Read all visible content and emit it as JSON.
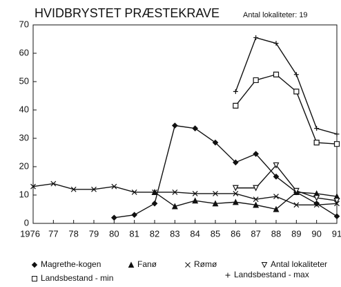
{
  "chart_data": {
    "type": "line",
    "title": "HVIDBRYSTET PRÆSTEKRAVE",
    "annotation": "Antal lokaliteter: 19",
    "x": [
      1976,
      1977,
      1978,
      1979,
      1980,
      1981,
      1982,
      1983,
      1984,
      1985,
      1986,
      1987,
      1988,
      1989,
      1990,
      1991
    ],
    "xlim": [
      1976,
      1991
    ],
    "xticks": [
      1976,
      {
        "value": 1977,
        "label": "77"
      },
      {
        "value": 1978,
        "label": "78"
      },
      {
        "value": 1979,
        "label": "79"
      },
      {
        "value": 1980,
        "label": "80"
      },
      {
        "value": 1981,
        "label": "81"
      },
      {
        "value": 1982,
        "label": "82"
      },
      {
        "value": 1983,
        "label": "83"
      },
      {
        "value": 1984,
        "label": "84"
      },
      {
        "value": 1985,
        "label": "85"
      },
      {
        "value": 1986,
        "label": "86"
      },
      {
        "value": 1987,
        "label": "87"
      },
      {
        "value": 1988,
        "label": "88"
      },
      {
        "value": 1989,
        "label": "89"
      },
      {
        "value": 1990,
        "label": "90"
      },
      {
        "value": 1991,
        "label": "91"
      }
    ],
    "ylim": [
      0,
      70
    ],
    "yticks": [
      0,
      10,
      20,
      30,
      40,
      50,
      60,
      70
    ],
    "grid": false,
    "series": [
      {
        "name": "Magrethe-kogen",
        "color": "#111111",
        "marker": "diamond",
        "values": [
          null,
          null,
          null,
          null,
          2,
          3,
          7,
          34.5,
          33.5,
          28.5,
          21.5,
          24.5,
          16.5,
          11,
          7,
          2.5
        ]
      },
      {
        "name": "Fanø",
        "color": "#111111",
        "marker": "triangle",
        "values": [
          null,
          null,
          null,
          null,
          null,
          null,
          11,
          6,
          8,
          7,
          7.5,
          6.5,
          5,
          11,
          10.5,
          9.5
        ]
      },
      {
        "name": "Rømø",
        "color": "#111111",
        "marker": "cross",
        "values": [
          13,
          14,
          12,
          12,
          13,
          11,
          11,
          11,
          10.5,
          10.5,
          10.5,
          8.5,
          9.5,
          6.5,
          6.5,
          7
        ]
      },
      {
        "name": "Antal lokaliteter",
        "color": "#111111",
        "marker": "triangle-down",
        "values": [
          null,
          null,
          null,
          null,
          null,
          null,
          null,
          null,
          null,
          null,
          12.5,
          12.5,
          20.5,
          11.5,
          9,
          8
        ]
      },
      {
        "name": "Landsbestand - min",
        "color": "#111111",
        "marker": "square",
        "values": [
          null,
          null,
          null,
          null,
          null,
          null,
          null,
          null,
          null,
          null,
          41.5,
          50.5,
          52.5,
          46.5,
          28.5,
          28
        ]
      },
      {
        "name": "Landsbestand - max",
        "color": "#111111",
        "marker": "plus",
        "values": [
          null,
          null,
          null,
          null,
          null,
          null,
          null,
          null,
          null,
          null,
          46.5,
          65.5,
          63.5,
          52.5,
          33.5,
          31.5
        ]
      }
    ]
  }
}
